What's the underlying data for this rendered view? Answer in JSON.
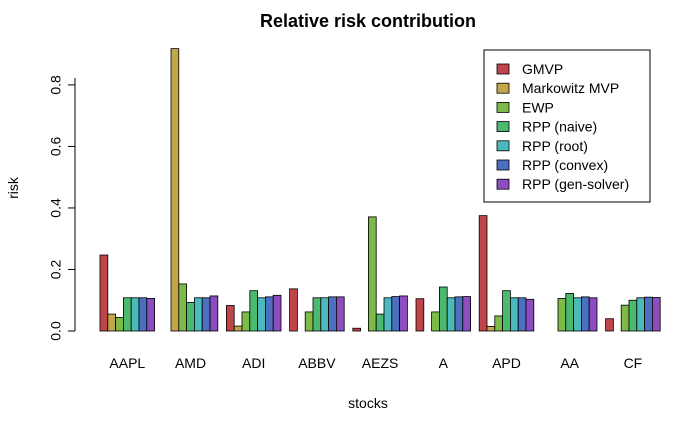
{
  "chart_data": {
    "type": "bar",
    "title": "Relative risk contribution",
    "xlabel": "stocks",
    "ylabel": "risk",
    "ylim": [
      0,
      0.92
    ],
    "yticks": [
      "0.0",
      "0.2",
      "0.4",
      "0.6",
      "0.8"
    ],
    "ytick_values": [
      0,
      0.2,
      0.4,
      0.6,
      0.8
    ],
    "grid": false,
    "legend_position": "top-right",
    "categories": [
      "AAPL",
      "AMD",
      "ADI",
      "ABBV",
      "AEZS",
      "A",
      "APD",
      "AA",
      "CF"
    ],
    "series": [
      {
        "name": "GMVP",
        "color": "#c0454a",
        "values": [
          0.247,
          0.0,
          0.083,
          0.137,
          0.009,
          0.105,
          0.375,
          0.0,
          0.04
        ]
      },
      {
        "name": "Markowitz MVP",
        "color": "#c1a64a",
        "values": [
          0.055,
          0.918,
          0.016,
          0.0,
          0.0,
          0.0,
          0.015,
          0.0,
          0.0
        ]
      },
      {
        "name": "EWP",
        "color": "#7cba4a",
        "values": [
          0.044,
          0.153,
          0.062,
          0.062,
          0.371,
          0.062,
          0.049,
          0.106,
          0.084
        ]
      },
      {
        "name": "RPP (naive)",
        "color": "#4cba6e",
        "values": [
          0.108,
          0.093,
          0.131,
          0.108,
          0.055,
          0.143,
          0.131,
          0.122,
          0.1
        ]
      },
      {
        "name": "RPP (root)",
        "color": "#4cbabc",
        "values": [
          0.108,
          0.108,
          0.108,
          0.108,
          0.108,
          0.108,
          0.108,
          0.108,
          0.108
        ]
      },
      {
        "name": "RPP (convex)",
        "color": "#4c6fc0",
        "values": [
          0.108,
          0.108,
          0.111,
          0.111,
          0.112,
          0.111,
          0.108,
          0.111,
          0.11
        ]
      },
      {
        "name": "RPP (gen-solver)",
        "color": "#8d4cc0",
        "values": [
          0.106,
          0.114,
          0.116,
          0.111,
          0.114,
          0.112,
          0.103,
          0.108,
          0.109
        ]
      }
    ]
  }
}
